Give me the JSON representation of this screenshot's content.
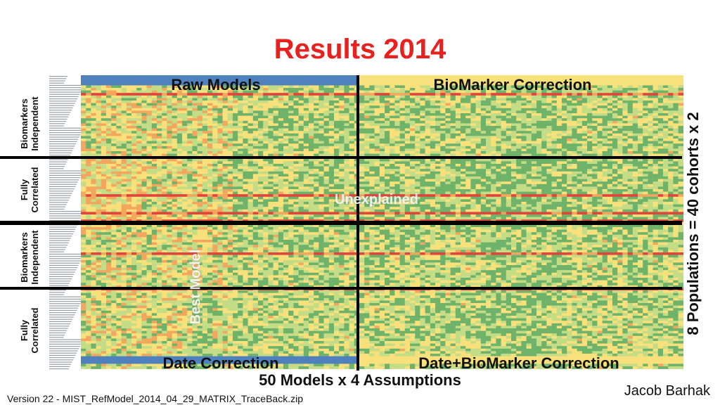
{
  "chart_data": {
    "type": "heatmap",
    "title": "Results 2014",
    "column_groups": [
      "Raw Models",
      "BioMarker Correction",
      "Date Correction",
      "Date+BioMarker Correction"
    ],
    "row_groups": [
      "Biomarkers Independent",
      "Fully Correlated",
      "Biomarkers Independent",
      "Fully Correlated"
    ],
    "y_axis_label": "8 Populations = 40 cohorts x 2",
    "x_axis_label": "50 Models x 4 Assumptions",
    "annotations": [
      "Unexplained",
      "Best Model"
    ],
    "colors": {
      "red": "#e0443a",
      "orange": "#f2a65e",
      "yellow": "#f8e07a",
      "light_green": "#c5dc86",
      "green": "#6fb36a",
      "blue": "#4f81bd"
    }
  },
  "footer": {
    "author": "Jacob Barhak",
    "version": "Version 22 -  MIST_RefModel_2014_04_29_MATRIX_TraceBack.zip"
  }
}
